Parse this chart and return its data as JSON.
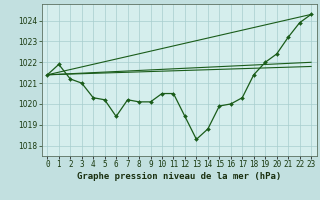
{
  "title": "Graphe pression niveau de la mer (hPa)",
  "background_color": "#c2e0e0",
  "plot_bg_color": "#d5eeed",
  "grid_color": "#a8cece",
  "line_color": "#1a5c1a",
  "xlim": [
    -0.5,
    23.5
  ],
  "ylim": [
    1017.5,
    1024.8
  ],
  "yticks": [
    1018,
    1019,
    1020,
    1021,
    1022,
    1023,
    1024
  ],
  "smooth_line1": {
    "x": [
      0,
      23
    ],
    "y": [
      1021.4,
      1024.3
    ]
  },
  "smooth_line2": {
    "x": [
      0,
      23
    ],
    "y": [
      1021.4,
      1022.0
    ]
  },
  "smooth_line3": {
    "x": [
      0,
      23
    ],
    "y": [
      1021.4,
      1021.8
    ]
  },
  "data_points": {
    "x": [
      0,
      1,
      2,
      3,
      4,
      5,
      6,
      7,
      8,
      9,
      10,
      11,
      12,
      13,
      14,
      15,
      16,
      17,
      18,
      19,
      20,
      21,
      22,
      23
    ],
    "y": [
      1021.4,
      1021.9,
      1021.2,
      1021.0,
      1020.3,
      1020.2,
      1019.4,
      1020.2,
      1020.1,
      1020.1,
      1020.5,
      1020.5,
      1019.4,
      1018.3,
      1018.8,
      1019.9,
      1020.0,
      1020.3,
      1021.4,
      1022.0,
      1022.4,
      1023.2,
      1023.9,
      1024.3
    ]
  },
  "title_fontsize": 6.5,
  "tick_fontsize": 5.5
}
